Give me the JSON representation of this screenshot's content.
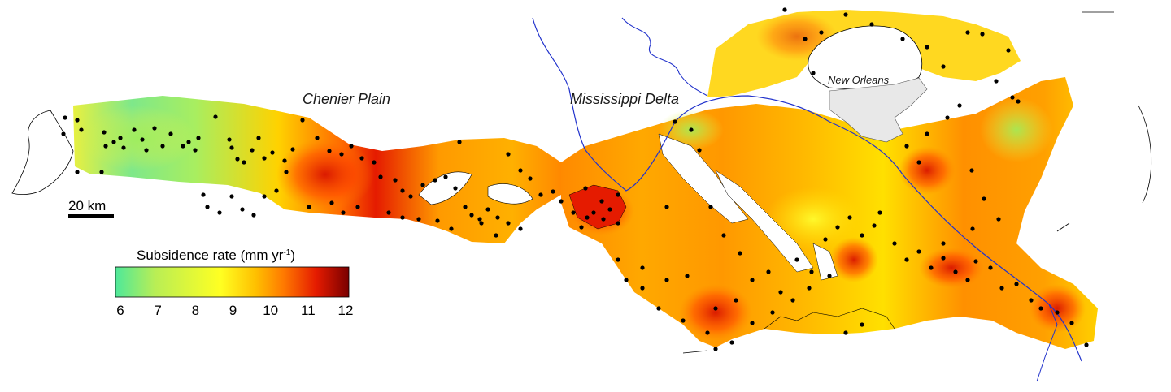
{
  "labels": {
    "chenier": "Chenier Plain",
    "mississippi": "Mississippi Delta",
    "new_orleans": "New Orleans"
  },
  "scale_bar": {
    "label": "20 km"
  },
  "legend": {
    "title_main": "Subsidence rate (mm yr",
    "title_sup": "-1",
    "title_close": ")",
    "ticks": [
      "6",
      "7",
      "8",
      "9",
      "10",
      "11",
      "12"
    ],
    "colors": [
      "#4ee89a",
      "#b9ee55",
      "#ffff22",
      "#ffc000",
      "#ff7a00",
      "#e51b00",
      "#7a0000"
    ]
  },
  "colors": {
    "river": "#2233cc",
    "coast": "#000000",
    "city": "#e8e8e8",
    "dots": "#000000"
  },
  "icons": {
    "river": "river-line-icon"
  }
}
